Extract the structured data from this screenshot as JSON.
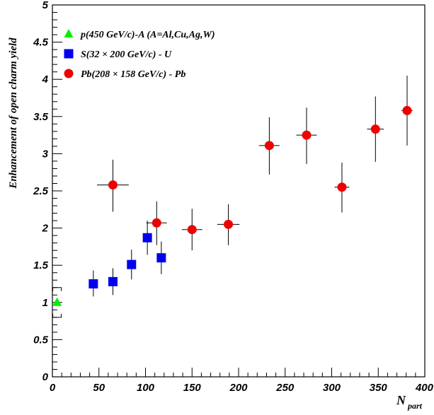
{
  "chart_data": {
    "type": "scatter",
    "title": "",
    "xlabel": "N",
    "xlabel_sub": "part",
    "ylabel": "Enhancement of open charm yield",
    "xlim": [
      0,
      400
    ],
    "ylim": [
      0,
      5
    ],
    "xticks": [
      "0",
      "50",
      "100",
      "150",
      "200",
      "250",
      "300",
      "350",
      "400"
    ],
    "yticks": [
      "0",
      "0.5",
      "1",
      "1.5",
      "2",
      "2.5",
      "3",
      "3.5",
      "4",
      "4.5",
      "5"
    ],
    "grid": false,
    "legend_position": "top-left",
    "series": [
      {
        "name": "p(450 GeV/c)-A (A=Al,Cu,Ag,W)",
        "marker": "triangle",
        "color": "#00ee00",
        "points": [
          {
            "x": 5,
            "y": 1.0,
            "xerr": 0,
            "ylo": 0.8,
            "yhi": 1.2
          }
        ]
      },
      {
        "name": "S(32 × 200 GeV/c) - U",
        "marker": "square",
        "color": "#0000ee",
        "points": [
          {
            "x": 44,
            "y": 1.25,
            "xerr": 0,
            "ylo": 1.08,
            "yhi": 1.43
          },
          {
            "x": 65,
            "y": 1.28,
            "xerr": 0,
            "ylo": 1.1,
            "yhi": 1.46
          },
          {
            "x": 85,
            "y": 1.51,
            "xerr": 0,
            "ylo": 1.31,
            "yhi": 1.71
          },
          {
            "x": 102,
            "y": 1.87,
            "xerr": 0,
            "ylo": 1.64,
            "yhi": 2.1
          },
          {
            "x": 117,
            "y": 1.6,
            "xerr": 0,
            "ylo": 1.38,
            "yhi": 1.82
          }
        ]
      },
      {
        "name": "Pb(208 × 158 GeV/c) - Pb",
        "marker": "circle",
        "color": "#ee0000",
        "points": [
          {
            "x": 65,
            "y": 2.58,
            "xerr": 17,
            "ylo": 2.22,
            "yhi": 2.92
          },
          {
            "x": 112,
            "y": 2.07,
            "xerr": 11,
            "ylo": 1.77,
            "yhi": 2.36
          },
          {
            "x": 150,
            "y": 1.98,
            "xerr": 11,
            "ylo": 1.7,
            "yhi": 2.26
          },
          {
            "x": 189,
            "y": 2.05,
            "xerr": 12,
            "ylo": 1.77,
            "yhi": 2.32
          },
          {
            "x": 233,
            "y": 3.11,
            "xerr": 11,
            "ylo": 2.72,
            "yhi": 3.49
          },
          {
            "x": 273,
            "y": 3.25,
            "xerr": 11,
            "ylo": 2.86,
            "yhi": 3.62
          },
          {
            "x": 311,
            "y": 2.55,
            "xerr": 8,
            "ylo": 2.21,
            "yhi": 2.88
          },
          {
            "x": 347,
            "y": 3.33,
            "xerr": 9,
            "ylo": 2.89,
            "yhi": 3.77
          },
          {
            "x": 381,
            "y": 3.58,
            "xerr": 6,
            "ylo": 3.11,
            "yhi": 4.05
          }
        ]
      }
    ]
  }
}
